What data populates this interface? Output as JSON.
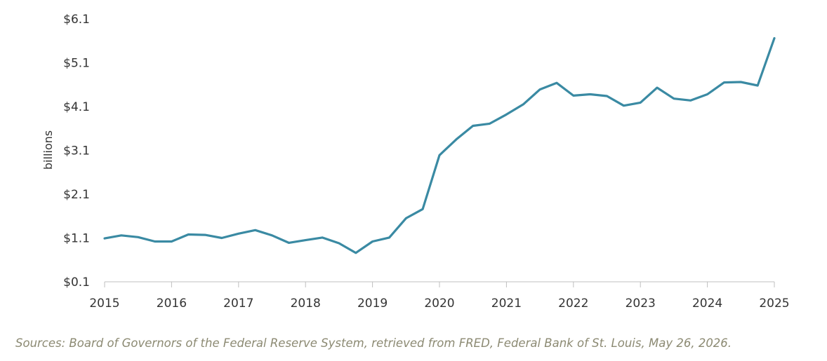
{
  "chart_data": {
    "type": "line",
    "title": "",
    "xlabel": "",
    "ylabel": "billions",
    "ylim": [
      0.1,
      6.1
    ],
    "yticks": [
      0.1,
      1.1,
      2.1,
      3.1,
      4.1,
      5.1,
      6.1
    ],
    "ytick_labels": [
      "$0.1",
      "$1.1",
      "$2.1",
      "$3.1",
      "$4.1",
      "$5.1",
      "$6.1"
    ],
    "xlim": [
      2015,
      2025
    ],
    "xticks": [
      2015,
      2016,
      2017,
      2018,
      2019,
      2020,
      2021,
      2022,
      2023,
      2024,
      2025
    ],
    "xtick_labels": [
      "2015",
      "2016",
      "2017",
      "2018",
      "2019",
      "2020",
      "2021",
      "2022",
      "2023",
      "2024",
      "2025"
    ],
    "grid": false,
    "line_color": "#3a8aa3",
    "series": [
      {
        "x": [
          2015.0,
          2015.25,
          2015.5,
          2015.75,
          2016.0,
          2016.25,
          2016.5,
          2016.75,
          2017.0,
          2017.25,
          2017.5,
          2017.75,
          2018.0,
          2018.25,
          2018.5,
          2018.75,
          2019.0,
          2019.25,
          2019.5,
          2019.75,
          2020.0,
          2020.25,
          2020.5,
          2020.75,
          2021.0,
          2021.25,
          2021.5,
          2021.75,
          2022.0,
          2022.25,
          2022.5,
          2022.75,
          2023.0,
          2023.25,
          2023.5,
          2023.75,
          2024.0,
          2024.25,
          2024.5,
          2024.75,
          2025.0
        ],
        "values": [
          1.09,
          1.16,
          1.12,
          1.02,
          1.02,
          1.18,
          1.17,
          1.1,
          1.2,
          1.28,
          1.16,
          0.99,
          1.05,
          1.11,
          0.98,
          0.76,
          1.02,
          1.11,
          1.55,
          1.76,
          2.99,
          3.35,
          3.66,
          3.71,
          3.92,
          4.15,
          4.49,
          4.64,
          4.35,
          4.38,
          4.34,
          4.12,
          4.19,
          4.53,
          4.28,
          4.24,
          4.38,
          4.65,
          4.66,
          4.58,
          5.66
        ]
      }
    ]
  },
  "source_note": "Sources: Board of Governors of the Federal Reserve System, retrieved from FRED, Federal Bank of St. Louis, May 26, 2026."
}
